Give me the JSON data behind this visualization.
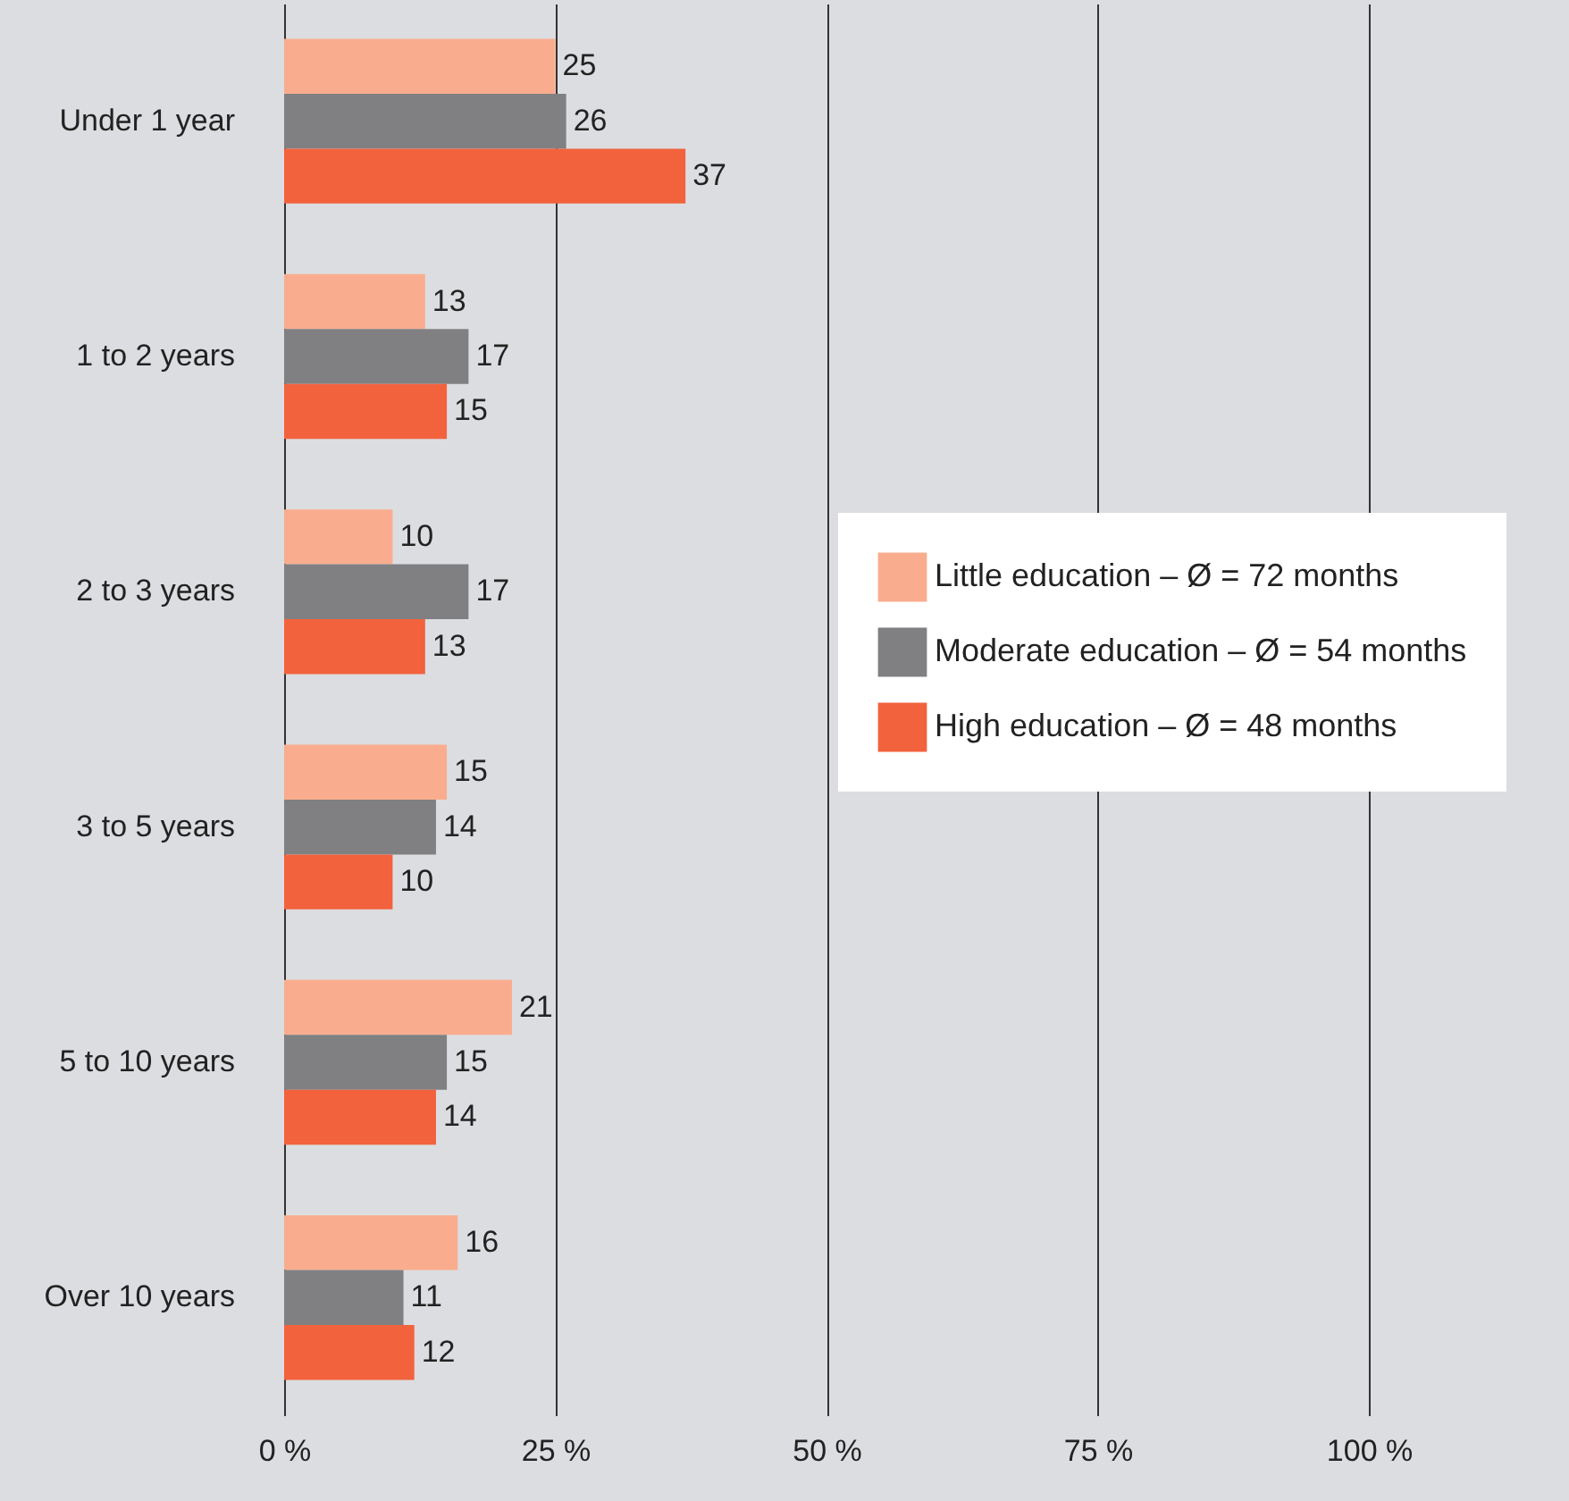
{
  "chart_data": {
    "type": "bar",
    "orientation": "horizontal",
    "categories": [
      "Under 1 year",
      "1 to 2 years",
      "2 to 3 years",
      "3 to 5 years",
      "5 to 10 years",
      "Over 10 years"
    ],
    "series": [
      {
        "name": "Little education – Ø = 72 months",
        "color": "#f9ad8e",
        "values": [
          25,
          13,
          10,
          15,
          21,
          16
        ]
      },
      {
        "name": "Moderate education – Ø = 54 months",
        "color": "#808083",
        "values": [
          26,
          17,
          17,
          14,
          15,
          11
        ]
      },
      {
        "name": "High education – Ø = 48 months",
        "color": "#f2623d",
        "values": [
          37,
          15,
          13,
          10,
          14,
          12
        ]
      }
    ],
    "xlim": [
      0,
      100
    ],
    "xticks": [
      {
        "value": 0,
        "label": "0 %"
      },
      {
        "value": 25,
        "label": "25 %"
      },
      {
        "value": 50,
        "label": "50 %"
      },
      {
        "value": 75,
        "label": "75 %"
      },
      {
        "value": 100,
        "label": "100 %"
      }
    ],
    "grid": "x",
    "legend": "right",
    "data_labels": true
  }
}
